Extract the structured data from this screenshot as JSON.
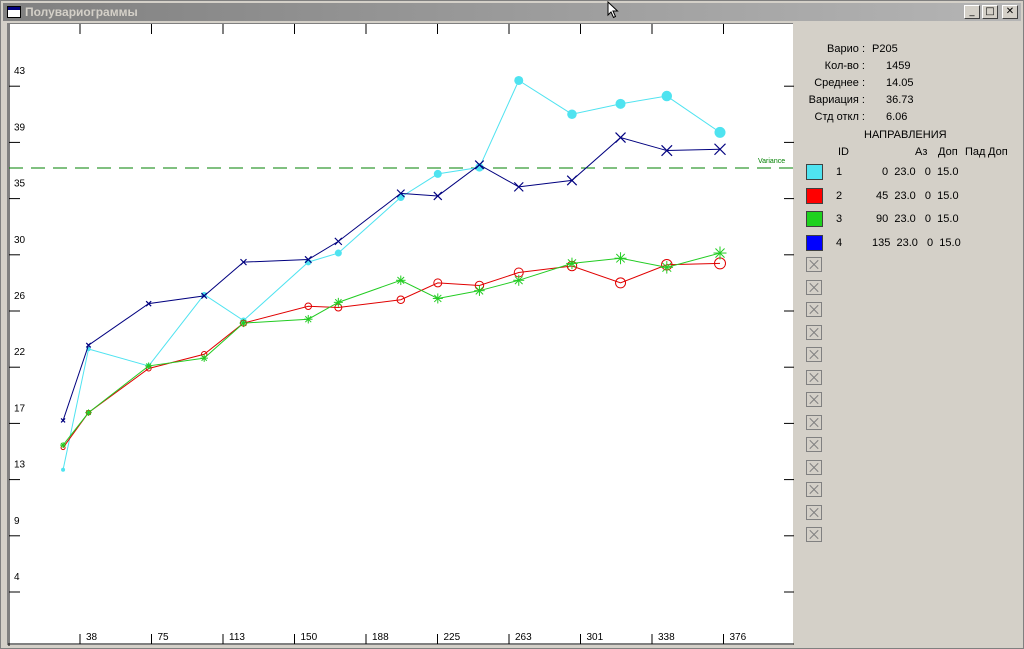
{
  "window": {
    "title": "Полувариограммы"
  },
  "stats": [
    {
      "label": "Варио :",
      "value": "P205"
    },
    {
      "label": "Кол-во :",
      "value": "1459"
    },
    {
      "label": "Среднее :",
      "value": "14.05"
    },
    {
      "label": "Вариация :",
      "value": "36.73"
    },
    {
      "label": "Стд откл :",
      "value": "6.06"
    }
  ],
  "directions": {
    "heading": "НАПРАВЛЕНИЯ",
    "col_id": "ID",
    "col_az": "Аз",
    "col_dop": "Доп",
    "col_pad": "Пад",
    "col_dop2": "Доп",
    "rows": [
      {
        "id": "1",
        "params": "0  23.0   0  15.0",
        "color": "#4fe3f0"
      },
      {
        "id": "2",
        "params": "45  23.0   0  15.0",
        "color": "#ff0000"
      },
      {
        "id": "3",
        "params": "90  23.0   0  15.0",
        "color": "#1ed11e"
      },
      {
        "id": "4",
        "params": "135  23.0   0  15.0",
        "color": "#0000ff"
      }
    ],
    "empty_slots": 13
  },
  "chart_data": {
    "type": "line",
    "x_ticks": [
      "38",
      "75",
      "113",
      "150",
      "188",
      "225",
      "263",
      "301",
      "338",
      "376"
    ],
    "y_ticks": [
      "4",
      "9",
      "13",
      "17",
      "22",
      "26",
      "30",
      "35",
      "39",
      "43"
    ],
    "xlim": [
      0,
      400
    ],
    "ylim": [
      0,
      47
    ],
    "variance": {
      "value": 36.73,
      "label": "Variance",
      "color": "#008000"
    },
    "series": [
      {
        "marker": "dot",
        "color": "#4fe3f0",
        "points": [
          [
            13,
            12.5
          ],
          [
            24,
            21.8
          ],
          [
            50,
            20.5
          ],
          [
            74,
            26
          ],
          [
            91,
            24
          ],
          [
            119,
            28.5
          ],
          [
            132,
            29.2
          ],
          [
            159,
            33.5
          ],
          [
            175,
            35.3
          ],
          [
            193,
            35.8
          ],
          [
            210,
            42.5
          ],
          [
            233,
            39.9
          ],
          [
            254,
            40.7
          ],
          [
            274,
            41.3
          ],
          [
            297,
            38.5
          ]
        ]
      },
      {
        "marker": "circle",
        "color": "#e00000",
        "points": [
          [
            13,
            14.2
          ],
          [
            24,
            16.9
          ],
          [
            50,
            20.3
          ],
          [
            74,
            21.4
          ],
          [
            91,
            23.8
          ],
          [
            119,
            25.1
          ],
          [
            132,
            25
          ],
          [
            159,
            25.6
          ],
          [
            175,
            26.9
          ],
          [
            193,
            26.7
          ],
          [
            210,
            27.7
          ],
          [
            233,
            28.2
          ],
          [
            254,
            26.9
          ],
          [
            274,
            28.3
          ],
          [
            297,
            28.4
          ]
        ]
      },
      {
        "marker": "asterisk",
        "color": "#22cc22",
        "points": [
          [
            13,
            14.4
          ],
          [
            24,
            16.9
          ],
          [
            50,
            20.5
          ],
          [
            74,
            21.1
          ],
          [
            91,
            23.8
          ],
          [
            119,
            24.1
          ],
          [
            132,
            25.4
          ],
          [
            159,
            27.1
          ],
          [
            175,
            25.7
          ],
          [
            193,
            26.3
          ],
          [
            210,
            27.1
          ],
          [
            233,
            28.4
          ],
          [
            254,
            28.8
          ],
          [
            274,
            28.1
          ],
          [
            297,
            29.2
          ]
        ]
      },
      {
        "marker": "x",
        "color": "#00007f",
        "points": [
          [
            13,
            16.3
          ],
          [
            24,
            22.1
          ],
          [
            50,
            25.3
          ],
          [
            74,
            25.9
          ],
          [
            91,
            28.5
          ],
          [
            119,
            28.7
          ],
          [
            132,
            30.1
          ],
          [
            159,
            33.8
          ],
          [
            175,
            33.6
          ],
          [
            193,
            36
          ],
          [
            210,
            34.3
          ],
          [
            233,
            34.8
          ],
          [
            254,
            38.1
          ],
          [
            274,
            37.1
          ],
          [
            297,
            37.2
          ]
        ]
      }
    ]
  }
}
